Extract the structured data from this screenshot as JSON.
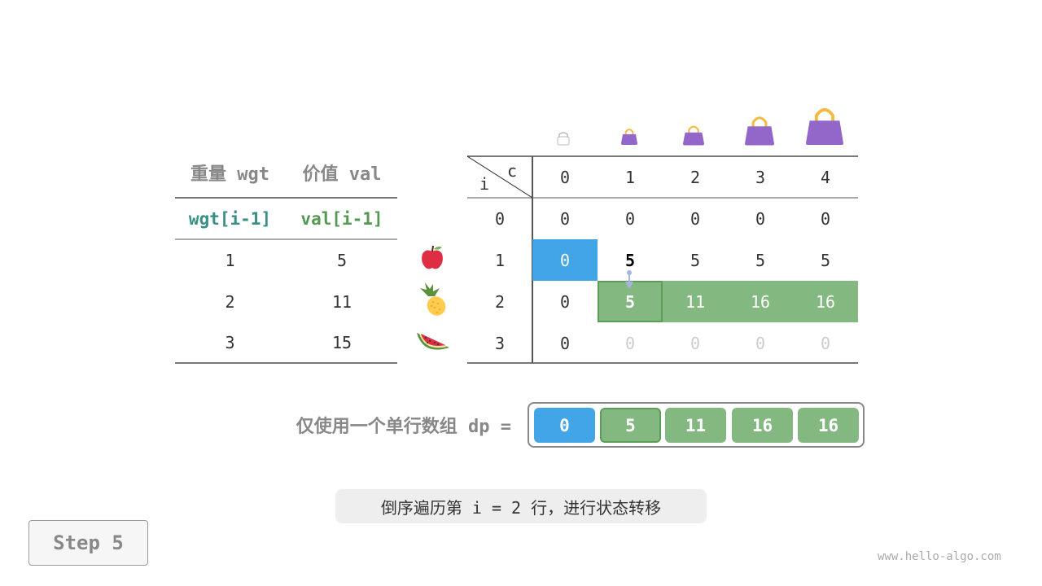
{
  "colors": {
    "blue": "#42a5e8",
    "green": "#83b980",
    "green_border": "#5a9e57",
    "teal": "#3a8f84",
    "val_green": "#53994f",
    "faded": "#cccccc",
    "bag": "#9366c9",
    "handle": "#f5b942"
  },
  "items_table": {
    "headers": [
      "重量 wgt",
      "价值 val"
    ],
    "subheaders": [
      "wgt[i-1]",
      "val[i-1]"
    ],
    "rows": [
      {
        "wgt": "1",
        "val": "5",
        "icon": "apple-icon"
      },
      {
        "wgt": "2",
        "val": "11",
        "icon": "pineapple-icon"
      },
      {
        "wgt": "3",
        "val": "15",
        "icon": "watermelon-icon"
      }
    ]
  },
  "dp_table": {
    "corner_col": "c",
    "corner_row": "i",
    "capacity_headers": [
      "0",
      "1",
      "2",
      "3",
      "4"
    ],
    "row_headers": [
      "0",
      "1",
      "2",
      "3"
    ],
    "rows": [
      [
        "0",
        "0",
        "0",
        "0",
        "0"
      ],
      [
        "0",
        "5",
        "5",
        "5",
        "5"
      ],
      [
        "0",
        "5",
        "11",
        "16",
        "16"
      ],
      [
        "0",
        "0",
        "0",
        "0",
        "0"
      ]
    ]
  },
  "dp_array": {
    "label": "仅使用一个单行数组 dp =",
    "values": [
      "0",
      "5",
      "11",
      "16",
      "16"
    ]
  },
  "caption": "倒序遍历第 i = 2 行，进行状态转移",
  "step_button": "Step 5",
  "watermark": "www.hello-algo.com"
}
